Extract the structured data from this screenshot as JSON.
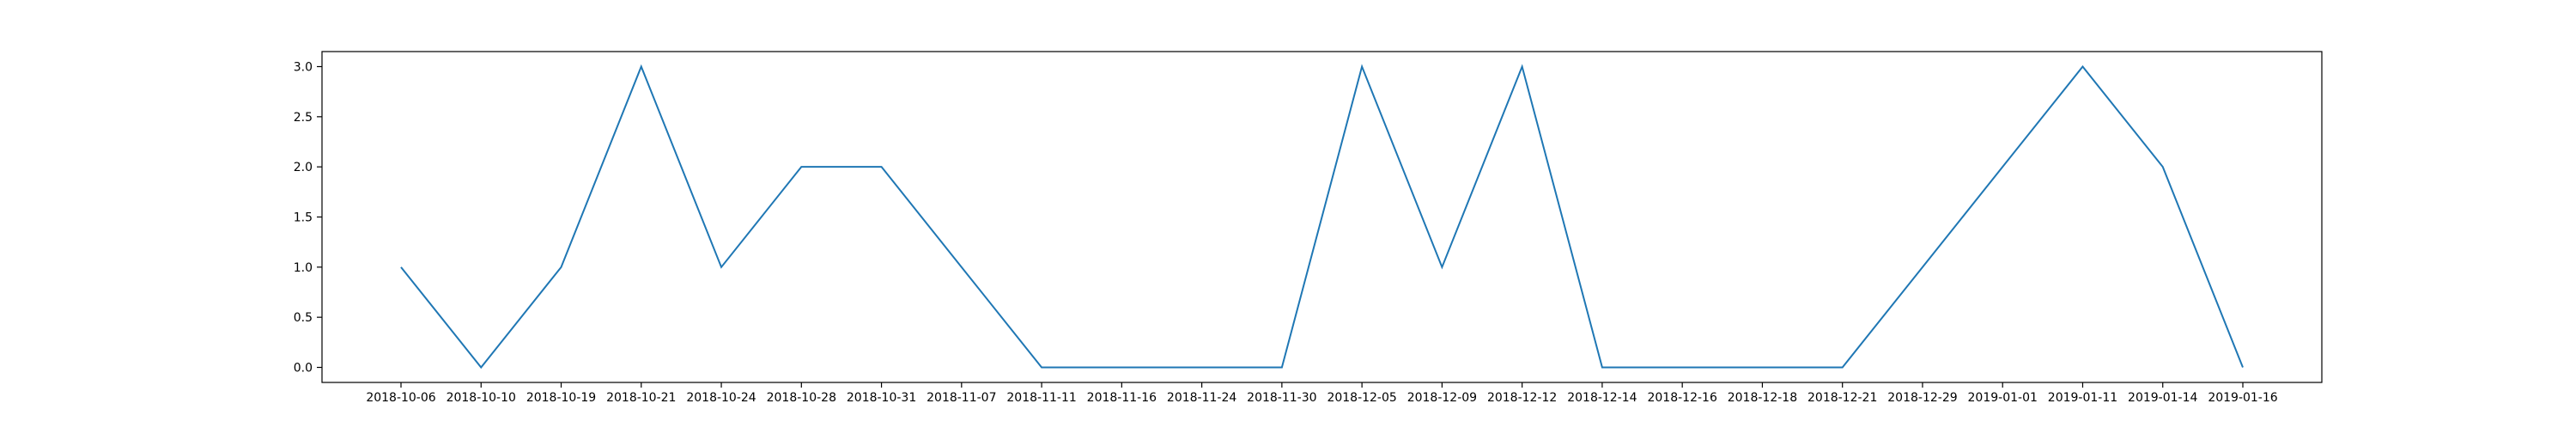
{
  "chart_data": {
    "type": "line",
    "title": "",
    "xlabel": "",
    "ylabel": "",
    "categories": [
      "2018-10-06",
      "2018-10-10",
      "2018-10-19",
      "2018-10-21",
      "2018-10-24",
      "2018-10-28",
      "2018-10-31",
      "2018-11-07",
      "2018-11-11",
      "2018-11-16",
      "2018-11-24",
      "2018-11-30",
      "2018-12-05",
      "2018-12-09",
      "2018-12-12",
      "2018-12-14",
      "2018-12-16",
      "2018-12-18",
      "2018-12-21",
      "2018-12-29",
      "2019-01-01",
      "2019-01-11",
      "2019-01-14",
      "2019-01-16"
    ],
    "series": [
      {
        "values": [
          1,
          0,
          1,
          3,
          1,
          2,
          2,
          1,
          0,
          0,
          0,
          0,
          3,
          1,
          3,
          0,
          0,
          0,
          0,
          1,
          2,
          3,
          2,
          0
        ]
      }
    ],
    "ylim": [
      -0.15,
      3.15
    ],
    "yticks": [
      0.0,
      0.5,
      1.0,
      1.5,
      2.0,
      2.5,
      3.0
    ],
    "ytick_labels": [
      "0.0",
      "0.5",
      "1.0",
      "1.5",
      "2.0",
      "2.5",
      "3.0"
    ],
    "grid": false,
    "legend": "none",
    "colors": {
      "line": "#1f77b4",
      "axes": "#000000",
      "background": "#ffffff"
    }
  }
}
